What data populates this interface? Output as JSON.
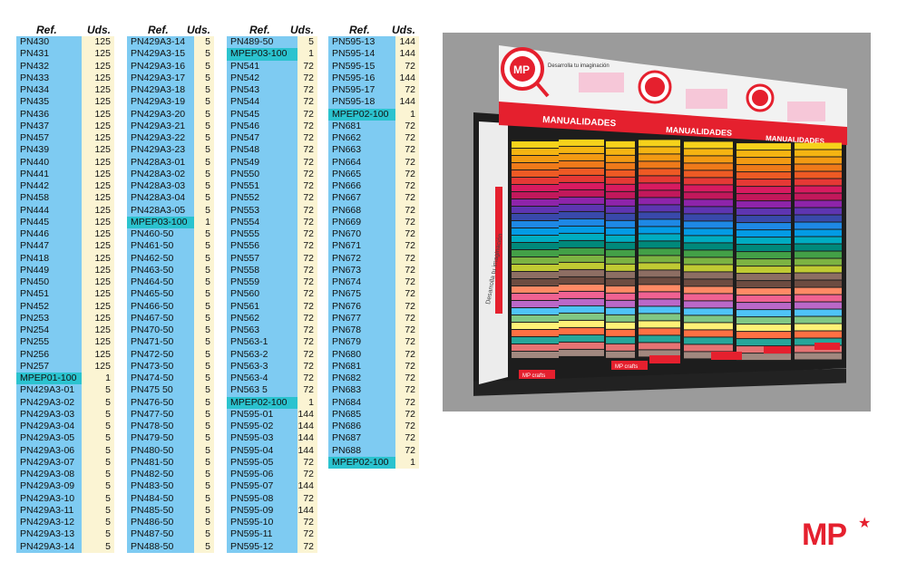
{
  "headers": {
    "ref": "Ref.",
    "uds": "Uds."
  },
  "columns": [
    {
      "rows": [
        [
          "PN430",
          "125"
        ],
        [
          "PN431",
          "125"
        ],
        [
          "PN432",
          "125"
        ],
        [
          "PN433",
          "125"
        ],
        [
          "PN434",
          "125"
        ],
        [
          "PN435",
          "125"
        ],
        [
          "PN436",
          "125"
        ],
        [
          "PN437",
          "125"
        ],
        [
          "PN457",
          "125"
        ],
        [
          "PN439",
          "125"
        ],
        [
          "PN440",
          "125"
        ],
        [
          "PN441",
          "125"
        ],
        [
          "PN442",
          "125"
        ],
        [
          "PN458",
          "125"
        ],
        [
          "PN444",
          "125"
        ],
        [
          "PN445",
          "125"
        ],
        [
          "PN446",
          "125"
        ],
        [
          "PN447",
          "125"
        ],
        [
          "PN418",
          "125"
        ],
        [
          "PN449",
          "125"
        ],
        [
          "PN450",
          "125"
        ],
        [
          "PN451",
          "125"
        ],
        [
          "PN452",
          "125"
        ],
        [
          "PN253",
          "125"
        ],
        [
          "PN254",
          "125"
        ],
        [
          "PN255",
          "125"
        ],
        [
          "PN256",
          "125"
        ],
        [
          "PN257",
          "125"
        ],
        [
          "MPEP01-100",
          "1"
        ],
        [
          "PN429A3-01",
          "5"
        ],
        [
          "PN429A3-02",
          "5"
        ],
        [
          "PN429A3-03",
          "5"
        ],
        [
          "PN429A3-04",
          "5"
        ],
        [
          "PN429A3-05",
          "5"
        ],
        [
          "PN429A3-06",
          "5"
        ],
        [
          "PN429A3-07",
          "5"
        ],
        [
          "PN429A3-08",
          "5"
        ],
        [
          "PN429A3-09",
          "5"
        ],
        [
          "PN429A3-10",
          "5"
        ],
        [
          "PN429A3-11",
          "5"
        ],
        [
          "PN429A3-12",
          "5"
        ],
        [
          "PN429A3-13",
          "5"
        ],
        [
          "PN429A3-14",
          "5"
        ]
      ]
    },
    {
      "rows": [
        [
          "PN429A3-14",
          "5"
        ],
        [
          "PN429A3-15",
          "5"
        ],
        [
          "PN429A3-16",
          "5"
        ],
        [
          "PN429A3-17",
          "5"
        ],
        [
          "PN429A3-18",
          "5"
        ],
        [
          "PN429A3-19",
          "5"
        ],
        [
          "PN429A3-20",
          "5"
        ],
        [
          "PN429A3-21",
          "5"
        ],
        [
          "PN429A3-22",
          "5"
        ],
        [
          "PN429A3-23",
          "5"
        ],
        [
          "PN428A3-01",
          "5"
        ],
        [
          "PN428A3-02",
          "5"
        ],
        [
          "PN428A3-03",
          "5"
        ],
        [
          "PN428A3-04",
          "5"
        ],
        [
          "PN428A3-05",
          "5"
        ],
        [
          "MPEP03-100",
          "1"
        ],
        [
          "PN460-50",
          "5"
        ],
        [
          "PN461-50",
          "5"
        ],
        [
          "PN462-50",
          "5"
        ],
        [
          "PN463-50",
          "5"
        ],
        [
          "PN464-50",
          "5"
        ],
        [
          "PN465-50",
          "5"
        ],
        [
          "PN466-50",
          "5"
        ],
        [
          "PN467-50",
          "5"
        ],
        [
          "PN470-50",
          "5"
        ],
        [
          "PN471-50",
          "5"
        ],
        [
          "PN472-50",
          "5"
        ],
        [
          "PN473-50",
          "5"
        ],
        [
          "PN474-50",
          "5"
        ],
        [
          "PN475 50",
          "5"
        ],
        [
          "PN476-50",
          "5"
        ],
        [
          "PN477-50",
          "5"
        ],
        [
          "PN478-50",
          "5"
        ],
        [
          "PN479-50",
          "5"
        ],
        [
          "PN480-50",
          "5"
        ],
        [
          "PN481-50",
          "5"
        ],
        [
          "PN482-50",
          "5"
        ],
        [
          "PN483-50",
          "5"
        ],
        [
          "PN484-50",
          "5"
        ],
        [
          "PN485-50",
          "5"
        ],
        [
          "PN486-50",
          "5"
        ],
        [
          "PN487-50",
          "5"
        ],
        [
          "PN488-50",
          "5"
        ]
      ]
    },
    {
      "rows": [
        [
          "PN489-50",
          "5"
        ],
        [
          "MPEP03-100",
          "1"
        ],
        [
          "PN541",
          "72"
        ],
        [
          "PN542",
          "72"
        ],
        [
          "PN543",
          "72"
        ],
        [
          "PN544",
          "72"
        ],
        [
          "PN545",
          "72"
        ],
        [
          "PN546",
          "72"
        ],
        [
          "PN547",
          "72"
        ],
        [
          "PN548",
          "72"
        ],
        [
          "PN549",
          "72"
        ],
        [
          "PN550",
          "72"
        ],
        [
          "PN551",
          "72"
        ],
        [
          "PN552",
          "72"
        ],
        [
          "PN553",
          "72"
        ],
        [
          "PN554",
          "72"
        ],
        [
          "PN555",
          "72"
        ],
        [
          "PN556",
          "72"
        ],
        [
          "PN557",
          "72"
        ],
        [
          "PN558",
          "72"
        ],
        [
          "PN559",
          "72"
        ],
        [
          "PN560",
          "72"
        ],
        [
          "PN561",
          "72"
        ],
        [
          "PN562",
          "72"
        ],
        [
          "PN563",
          "72"
        ],
        [
          "PN563-1",
          "72"
        ],
        [
          "PN563-2",
          "72"
        ],
        [
          "PN563-3",
          "72"
        ],
        [
          "PN563-4",
          "72"
        ],
        [
          "PN563 5",
          "72"
        ],
        [
          "MPEP02-100",
          "1"
        ],
        [
          "PN595-01",
          "144"
        ],
        [
          "PN595-02",
          "144"
        ],
        [
          "PN595-03",
          "144"
        ],
        [
          "PN595-04",
          "144"
        ],
        [
          "PN595-05",
          "72"
        ],
        [
          "PN595-06",
          "72"
        ],
        [
          "PN595-07",
          "144"
        ],
        [
          "PN595-08",
          "72"
        ],
        [
          "PN595-09",
          "144"
        ],
        [
          "PN595-10",
          "72"
        ],
        [
          "PN595-11",
          "72"
        ],
        [
          "PN595-12",
          "72"
        ]
      ]
    },
    {
      "rows": [
        [
          "PN595-13",
          "144"
        ],
        [
          "PN595-14",
          "144"
        ],
        [
          "PN595-15",
          "72"
        ],
        [
          "PN595-16",
          "144"
        ],
        [
          "PN595-17",
          "72"
        ],
        [
          "PN595-18",
          "144"
        ],
        [
          "MPEP02-100",
          "1"
        ],
        [
          "PN681",
          "72"
        ],
        [
          "PN662",
          "72"
        ],
        [
          "PN663",
          "72"
        ],
        [
          "PN664",
          "72"
        ],
        [
          "PN665",
          "72"
        ],
        [
          "PN666",
          "72"
        ],
        [
          "PN667",
          "72"
        ],
        [
          "PN668",
          "72"
        ],
        [
          "PN669",
          "72"
        ],
        [
          "PN670",
          "72"
        ],
        [
          "PN671",
          "72"
        ],
        [
          "PN672",
          "72"
        ],
        [
          "PN673",
          "72"
        ],
        [
          "PN674",
          "72"
        ],
        [
          "PN675",
          "72"
        ],
        [
          "PN676",
          "72"
        ],
        [
          "PN677",
          "72"
        ],
        [
          "PN678",
          "72"
        ],
        [
          "PN679",
          "72"
        ],
        [
          "PN680",
          "72"
        ],
        [
          "PN681",
          "72"
        ],
        [
          "PN682",
          "72"
        ],
        [
          "PN683",
          "72"
        ],
        [
          "PN684",
          "72"
        ],
        [
          "PN685",
          "72"
        ],
        [
          "PN686",
          "72"
        ],
        [
          "PN687",
          "72"
        ],
        [
          "PN688",
          "72"
        ],
        [
          "MPEP02-100",
          "1"
        ]
      ]
    }
  ],
  "display": {
    "header_text": "MANUALIDADES",
    "slogan": "Desarrolla tu imaginación",
    "brand_badge": "MP",
    "sub_brand": "MP crafts",
    "side_text": "Desarrolla tu imaginación"
  },
  "logo": {
    "text": "MP",
    "star": "★",
    "color": "#e5202e"
  },
  "colors": {
    "ref_bg": "#7ecbf2",
    "uds_bg": "#fbf4d3",
    "highlight_bg": "#2bc3cf",
    "brand_red": "#e5202e"
  }
}
